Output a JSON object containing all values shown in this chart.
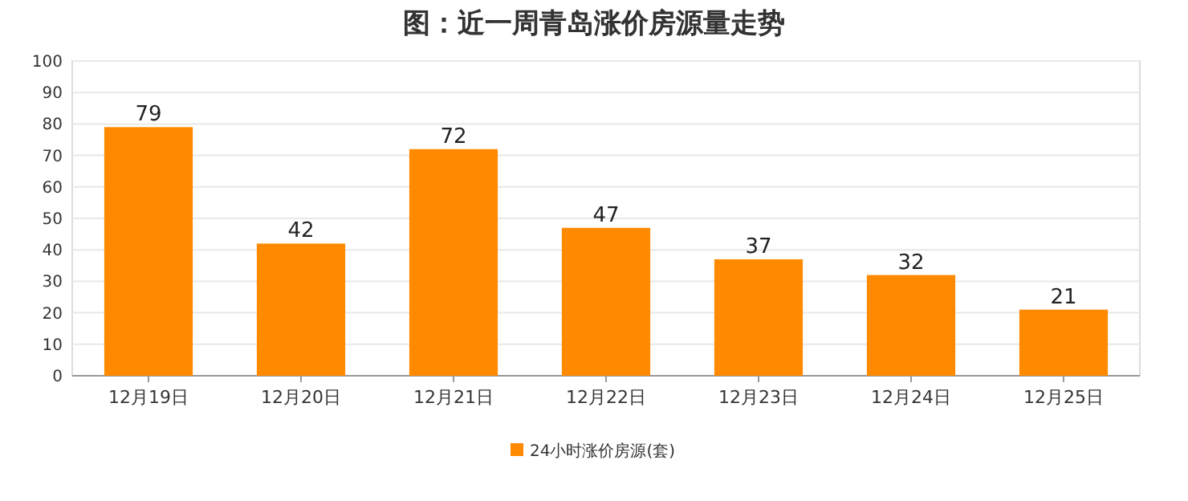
{
  "chart_data": {
    "type": "bar",
    "title": "图：近一周青岛涨价房源量走势",
    "categories": [
      "12月19日",
      "12月20日",
      "12月21日",
      "12月22日",
      "12月23日",
      "12月24日",
      "12月25日"
    ],
    "series": [
      {
        "name": "24小时涨价房源(套)",
        "color": "#ff8a00",
        "values": [
          79,
          42,
          72,
          47,
          37,
          32,
          21
        ]
      }
    ],
    "ylim": [
      0,
      100
    ],
    "yticks": [
      0,
      10,
      20,
      30,
      40,
      50,
      60,
      70,
      80,
      90,
      100
    ],
    "grid": "y",
    "legend": "bottom",
    "data_labels": true
  }
}
